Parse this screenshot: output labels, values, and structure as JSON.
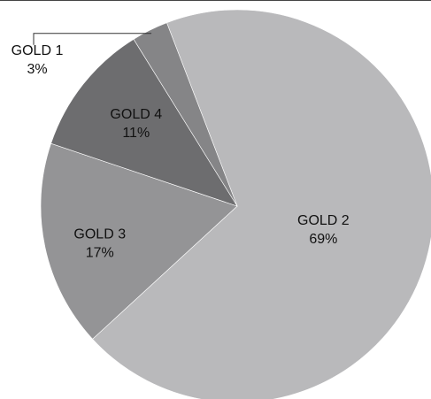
{
  "chart_data": {
    "type": "pie",
    "start_angle_deg": -21,
    "direction": "clockwise",
    "slices": [
      {
        "label": "GOLD 2",
        "value": 69,
        "value_text": "69%",
        "color": "#b9b9bb"
      },
      {
        "label": "GOLD 3",
        "value": 17,
        "value_text": "17%",
        "color": "#949496"
      },
      {
        "label": "GOLD 4",
        "value": 11,
        "value_text": "11%",
        "color": "#6d6d6f"
      },
      {
        "label": "GOLD 1",
        "value": 3,
        "value_text": "3%",
        "color": "#858587"
      }
    ],
    "callout_slice": "GOLD 1",
    "legend": "none"
  }
}
